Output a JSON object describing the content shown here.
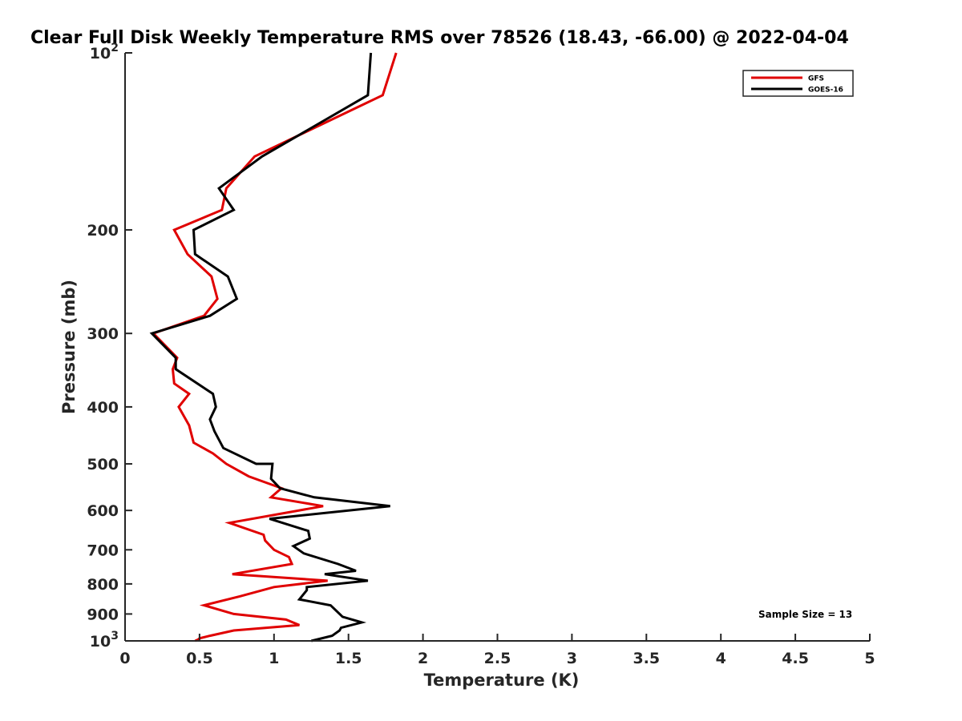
{
  "chart_data": {
    "type": "line",
    "title": "Clear Full Disk Weekly Temperature RMS over 78526 (18.43, -66.00) @ 2022-04-04",
    "xlabel": "Temperature (K)",
    "ylabel": "Pressure (mb)",
    "xlim": [
      0,
      5
    ],
    "ylim": [
      100,
      1000
    ],
    "yscale": "log",
    "y_reversed": true,
    "x_ticks": [
      "0",
      "0.5",
      "1",
      "1.5",
      "2",
      "2.5",
      "3",
      "3.5",
      "4",
      "4.5",
      "5"
    ],
    "y_ticks": [
      {
        "value": 200,
        "label": "200"
      },
      {
        "value": 300,
        "label": "300"
      },
      {
        "value": 400,
        "label": "400"
      },
      {
        "value": 500,
        "label": "500"
      },
      {
        "value": 600,
        "label": "600"
      },
      {
        "value": 700,
        "label": "700"
      },
      {
        "value": 800,
        "label": "800"
      },
      {
        "value": 900,
        "label": "900"
      }
    ],
    "y_tick_top": {
      "base": "10",
      "exp": "2"
    },
    "y_tick_bottom": {
      "base": "10",
      "exp": "3"
    },
    "grid": false,
    "legend_position": "top-right",
    "annotation": "Sample Size = 13",
    "series": [
      {
        "name": "GFS",
        "color": "#e00000",
        "x": [
          1.82,
          1.73,
          0.87,
          0.68,
          0.65,
          0.33,
          0.42,
          0.58,
          0.62,
          0.53,
          0.19,
          0.35,
          0.32,
          0.33,
          0.43,
          0.36,
          0.43,
          0.46,
          0.59,
          0.68,
          0.83,
          1.05,
          0.98,
          1.33,
          0.7,
          0.93,
          0.94,
          1.0,
          1.1,
          1.12,
          0.72,
          1.36,
          1.0,
          0.77,
          0.53,
          0.73,
          1.08,
          1.17,
          0.73,
          0.57,
          0.5,
          0.49,
          0.47
        ],
        "y": [
          100,
          118,
          150,
          170,
          185,
          200,
          220,
          240,
          262,
          280,
          300,
          330,
          345,
          365,
          380,
          400,
          430,
          460,
          480,
          500,
          525,
          550,
          570,
          590,
          630,
          660,
          675,
          700,
          720,
          740,
          770,
          790,
          810,
          840,
          870,
          900,
          920,
          940,
          960,
          980,
          990,
          995,
          1000
        ]
      },
      {
        "name": "GOES-16",
        "color": "#000000",
        "x": [
          1.65,
          1.63,
          0.92,
          0.63,
          0.73,
          0.46,
          0.47,
          0.69,
          0.75,
          0.57,
          0.18,
          0.34,
          0.34,
          0.59,
          0.61,
          0.57,
          0.6,
          0.66,
          0.88,
          0.99,
          0.98,
          1.04,
          1.27,
          1.78,
          0.97,
          1.23,
          1.24,
          1.13,
          1.2,
          1.43,
          1.55,
          1.34,
          1.63,
          1.22,
          1.22,
          1.17,
          1.38,
          1.46,
          1.59,
          1.45,
          1.44,
          1.39,
          1.25
        ],
        "y": [
          100,
          118,
          150,
          170,
          185,
          200,
          220,
          240,
          262,
          280,
          300,
          330,
          345,
          380,
          400,
          420,
          440,
          470,
          500,
          500,
          530,
          550,
          570,
          590,
          620,
          650,
          670,
          690,
          710,
          740,
          760,
          770,
          790,
          810,
          820,
          850,
          870,
          910,
          930,
          950,
          960,
          980,
          1000
        ]
      }
    ]
  }
}
